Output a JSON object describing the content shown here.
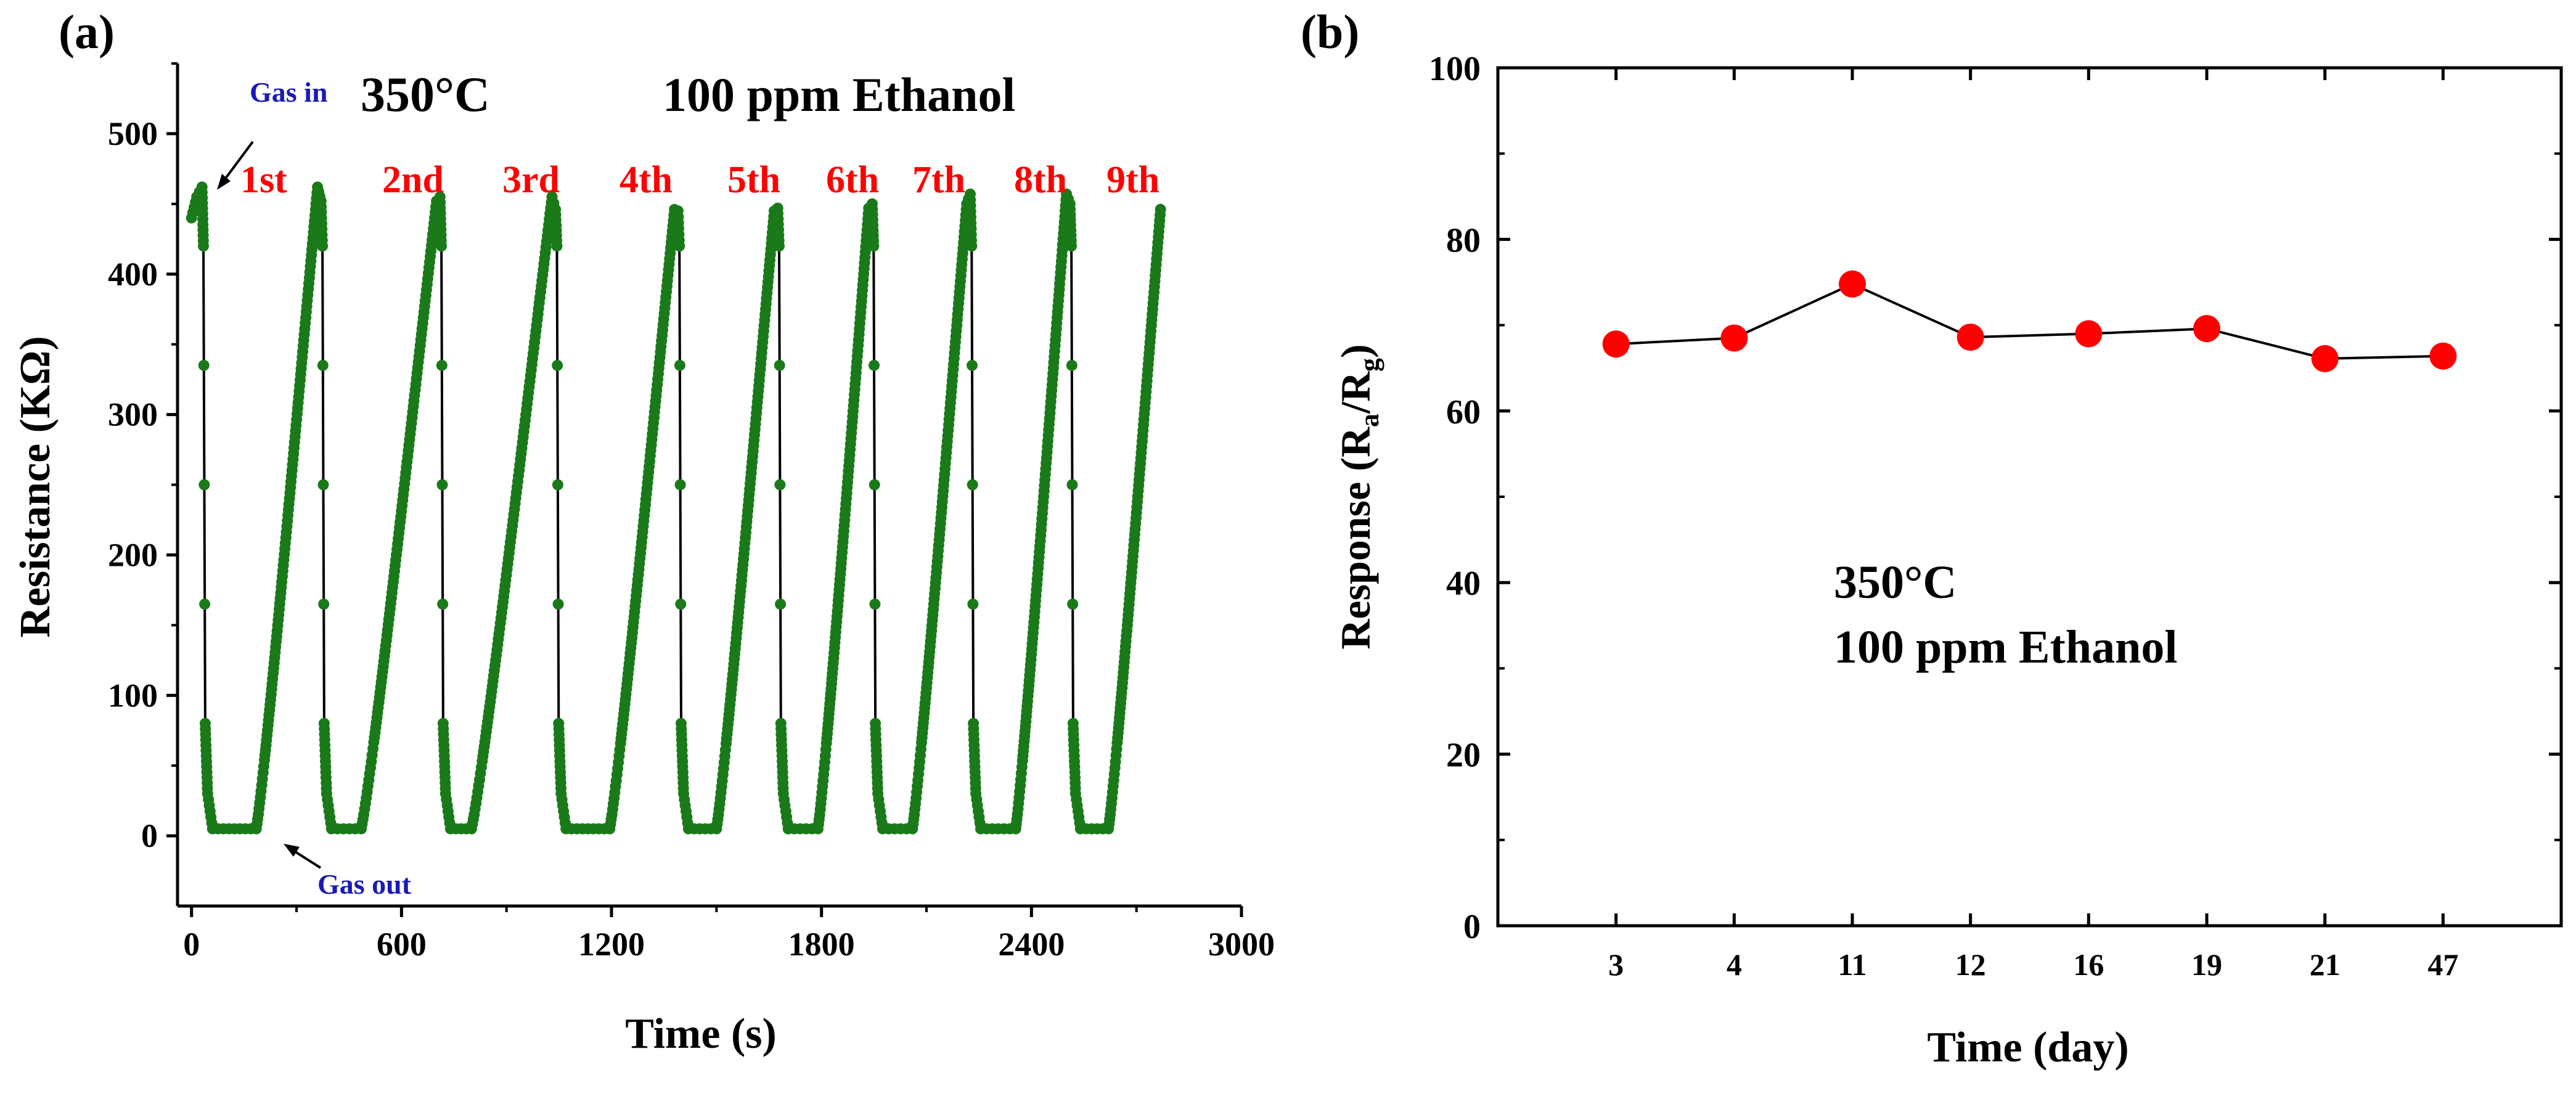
{
  "chart_data": [
    {
      "panel_label": "(a)",
      "type": "line",
      "title": "",
      "xlabel": "Time (s)",
      "ylabel": "Resistance (KΩ)",
      "xlim": [
        -40,
        3000
      ],
      "ylim": [
        -50,
        550
      ],
      "xticks": [
        0,
        600,
        1200,
        1800,
        2400,
        3000
      ],
      "xtick_labels": [
        "0",
        "600",
        "1200",
        "1800",
        "2400",
        "3000"
      ],
      "yticks": [
        0,
        100,
        200,
        300,
        400,
        500
      ],
      "ytick_labels": [
        "0",
        "100",
        "200",
        "300",
        "400",
        "500"
      ],
      "series_color": "#1a7a1a",
      "line_color": "#000000",
      "baseline": 5,
      "cycles": [
        {
          "label": "1st",
          "gas_in": 30,
          "peak": 462,
          "rise_start": 185,
          "rise_end": 360
        },
        {
          "label": "2nd",
          "gas_in": 370,
          "peak": 452,
          "rise_start": 485,
          "rise_end": 700
        },
        {
          "label": "3rd",
          "gas_in": 710,
          "peak": 455,
          "rise_start": 800,
          "rise_end": 1030
        },
        {
          "label": "4th",
          "gas_in": 1040,
          "peak": 446,
          "rise_start": 1195,
          "rise_end": 1380
        },
        {
          "label": "5th",
          "gas_in": 1390,
          "peak": 445,
          "rise_start": 1500,
          "rise_end": 1665
        },
        {
          "label": "6th",
          "gas_in": 1675,
          "peak": 447,
          "rise_start": 1790,
          "rise_end": 1935
        },
        {
          "label": "7th",
          "gas_in": 1945,
          "peak": 450,
          "rise_start": 2060,
          "rise_end": 2215
        },
        {
          "label": "8th",
          "gas_in": 2225,
          "peak": 457,
          "rise_start": 2355,
          "rise_end": 2500
        },
        {
          "label": "9th",
          "gas_in": 2510,
          "peak": 450,
          "rise_start": 2620,
          "rise_end": 2770
        }
      ],
      "annotations": {
        "gas_in": "Gas in",
        "gas_out": "Gas out",
        "temperature": "350°C",
        "gas": "100 ppm Ethanol"
      },
      "colors": {
        "annotation_blue": "#1a1ab8",
        "cycle_red": "#ff0000"
      }
    },
    {
      "panel_label": "(b)",
      "type": "line",
      "title": "",
      "xlabel": "Time (day)",
      "ylabel": "Response (R",
      "ylabel_sub_a": "a",
      "ylabel_mid": "/R",
      "ylabel_sub_g": "g",
      "ylabel_end": ")",
      "categories": [
        "3",
        "4",
        "11",
        "12",
        "16",
        "19",
        "21",
        "47"
      ],
      "values": [
        67.8,
        68.5,
        74.8,
        68.6,
        69.0,
        69.6,
        66.1,
        66.4
      ],
      "ylim": [
        0,
        100
      ],
      "yticks": [
        0,
        20,
        40,
        60,
        80,
        100
      ],
      "ytick_labels": [
        "0",
        "20",
        "40",
        "60",
        "80",
        "100"
      ],
      "marker_color": "#ff0000",
      "line_color": "#000000",
      "annotations": {
        "temperature": "350°C",
        "gas": "100 ppm Ethanol"
      }
    }
  ]
}
